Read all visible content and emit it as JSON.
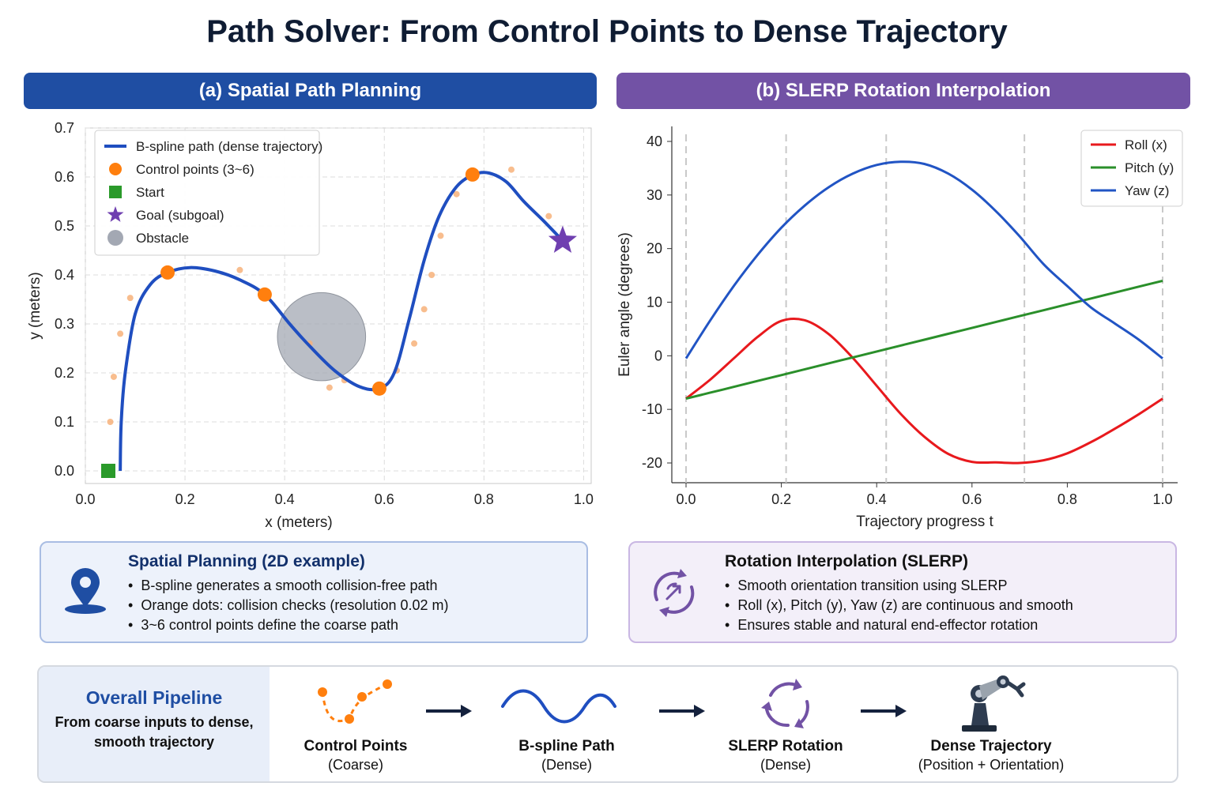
{
  "title": "Path Solver: From Control Points to Dense Trajectory",
  "colors": {
    "panel_a": "#1f4ea3",
    "panel_b": "#7252a5",
    "path": "#1f4ec0",
    "control": "#ff7f0e",
    "start": "#2a9a2a",
    "goal": "#6f3fb0",
    "obstacle": "#a3a8b3",
    "roll": "#e8191d",
    "pitch": "#2a8f2a",
    "yaw": "#2154c4"
  },
  "panel_a": {
    "header": "(a) Spatial Path Planning",
    "chart_data": {
      "type": "scatter",
      "xlabel": "x (meters)",
      "ylabel": "y (meters)",
      "xlim": [
        0.0,
        1.0
      ],
      "ylim": [
        0.0,
        0.7
      ],
      "xticks": [
        "0.0",
        "0.2",
        "0.4",
        "0.6",
        "0.8",
        "1.0"
      ],
      "yticks": [
        "0.0",
        "0.1",
        "0.2",
        "0.3",
        "0.4",
        "0.5",
        "0.6",
        "0.7"
      ],
      "grid": true,
      "legend_position": "top-left",
      "legend": [
        {
          "label": "B-spline path (dense trajectory)",
          "kind": "line"
        },
        {
          "label": "Control points (3~6)",
          "kind": "circle"
        },
        {
          "label": "Start",
          "kind": "square"
        },
        {
          "label": "Goal (subgoal)",
          "kind": "star"
        },
        {
          "label": "Obstacle",
          "kind": "disk"
        }
      ],
      "path": [
        [
          0.07,
          0.0
        ],
        [
          0.072,
          0.1
        ],
        [
          0.08,
          0.2
        ],
        [
          0.1,
          0.32
        ],
        [
          0.13,
          0.38
        ],
        [
          0.165,
          0.405
        ],
        [
          0.21,
          0.415
        ],
        [
          0.26,
          0.408
        ],
        [
          0.31,
          0.39
        ],
        [
          0.36,
          0.36
        ],
        [
          0.41,
          0.3
        ],
        [
          0.45,
          0.255
        ],
        [
          0.5,
          0.205
        ],
        [
          0.55,
          0.172
        ],
        [
          0.59,
          0.168
        ],
        [
          0.62,
          0.2
        ],
        [
          0.65,
          0.31
        ],
        [
          0.68,
          0.43
        ],
        [
          0.71,
          0.52
        ],
        [
          0.745,
          0.58
        ],
        [
          0.78,
          0.605
        ],
        [
          0.81,
          0.608
        ],
        [
          0.845,
          0.59
        ],
        [
          0.88,
          0.55
        ],
        [
          0.92,
          0.51
        ],
        [
          0.958,
          0.47
        ]
      ],
      "control_points": [
        [
          0.165,
          0.405
        ],
        [
          0.36,
          0.36
        ],
        [
          0.59,
          0.168
        ],
        [
          0.777,
          0.605
        ]
      ],
      "start": [
        0.046,
        0.0
      ],
      "goal": [
        0.958,
        0.47
      ],
      "obstacle": {
        "center": [
          0.474,
          0.274
        ],
        "radius": 0.09
      },
      "collision_checks": [
        [
          0.05,
          0.1
        ],
        [
          0.057,
          0.192
        ],
        [
          0.07,
          0.28
        ],
        [
          0.09,
          0.353
        ],
        [
          0.31,
          0.41
        ],
        [
          0.45,
          0.26
        ],
        [
          0.49,
          0.17
        ],
        [
          0.52,
          0.185
        ],
        [
          0.625,
          0.205
        ],
        [
          0.66,
          0.26
        ],
        [
          0.68,
          0.33
        ],
        [
          0.695,
          0.4
        ],
        [
          0.713,
          0.48
        ],
        [
          0.745,
          0.565
        ],
        [
          0.855,
          0.615
        ],
        [
          0.93,
          0.52
        ]
      ]
    }
  },
  "panel_b": {
    "header": "(b) SLERP Rotation Interpolation",
    "chart_data": {
      "type": "line",
      "xlabel": "Trajectory progress t",
      "ylabel": "Euler angle (degrees)",
      "xlim": [
        0.0,
        1.0
      ],
      "ylim": [
        -24,
        42
      ],
      "xticks": [
        "0.0",
        "0.2",
        "0.4",
        "0.6",
        "0.8",
        "1.0"
      ],
      "yticks": [
        "-20",
        "-10",
        "0",
        "10",
        "20",
        "30",
        "40"
      ],
      "grid": false,
      "vlines": [
        0.0,
        0.21,
        0.42,
        0.71,
        1.0
      ],
      "legend_position": "top-right",
      "x": [
        0.0,
        0.05,
        0.1,
        0.15,
        0.2,
        0.25,
        0.3,
        0.35,
        0.4,
        0.45,
        0.5,
        0.55,
        0.6,
        0.65,
        0.7,
        0.75,
        0.8,
        0.85,
        0.9,
        0.95,
        1.0
      ],
      "series": [
        {
          "name": "Roll (x)",
          "color": "#e8191d",
          "values": [
            -8,
            -4.5,
            -0.5,
            3.5,
            6.5,
            6.6,
            4.0,
            -0.4,
            -5.6,
            -10.8,
            -15.1,
            -18.3,
            -19.8,
            -19.9,
            -20.0,
            -19.5,
            -18.2,
            -16.1,
            -13.6,
            -10.9,
            -8
          ]
        },
        {
          "name": "Pitch (y)",
          "color": "#2a8f2a",
          "values": [
            -8,
            -6.9,
            -5.8,
            -4.7,
            -3.6,
            -2.5,
            -1.4,
            -0.3,
            0.8,
            1.9,
            3.0,
            4.1,
            5.2,
            6.3,
            7.4,
            8.5,
            9.6,
            10.7,
            11.8,
            12.9,
            14
          ]
        },
        {
          "name": "Yaw (z)",
          "color": "#2154c4",
          "values": [
            -0.5,
            6.5,
            13.0,
            18.8,
            23.9,
            28.1,
            31.5,
            34.0,
            35.6,
            36.2,
            35.8,
            34.0,
            31.0,
            27.0,
            22.3,
            17.1,
            13.0,
            9.0,
            6.0,
            3.0,
            -0.5
          ]
        }
      ]
    }
  },
  "info_a": {
    "title": "Spatial Planning (2D example)",
    "icon": "location-pin-icon",
    "bullets": [
      "B-spline generates a smooth collision-free path",
      "Orange dots: collision checks (resolution 0.02 m)",
      "3~6 control points define the coarse path"
    ]
  },
  "info_b": {
    "title": "Rotation Interpolation (SLERP)",
    "icon": "rotation-cycle-icon",
    "bullets": [
      "Smooth orientation transition using SLERP",
      "Roll (x), Pitch (y), Yaw (z) are continuous and smooth",
      "Ensures stable and natural end-effector rotation"
    ]
  },
  "pipeline": {
    "title": "Overall Pipeline",
    "subtitle": "From coarse inputs to dense, smooth trajectory",
    "stages": [
      {
        "name": "Control Points",
        "sub": "(Coarse)",
        "icon": "control-points-icon"
      },
      {
        "name": "B-spline Path",
        "sub": "(Dense)",
        "icon": "wave-path-icon"
      },
      {
        "name": "SLERP Rotation",
        "sub": "(Dense)",
        "icon": "rotation-icon"
      },
      {
        "name": "Dense Trajectory",
        "sub": "(Position + Orientation)",
        "icon": "robot-arm-icon"
      }
    ]
  }
}
